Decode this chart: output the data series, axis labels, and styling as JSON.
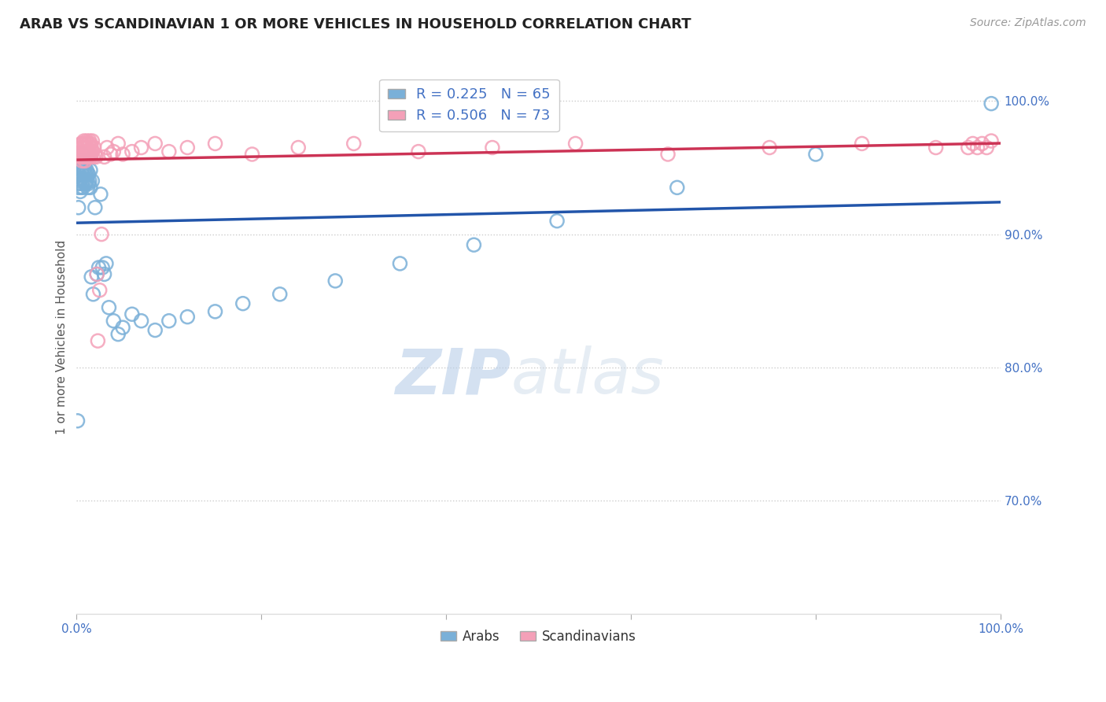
{
  "title": "ARAB VS SCANDINAVIAN 1 OR MORE VEHICLES IN HOUSEHOLD CORRELATION CHART",
  "source": "Source: ZipAtlas.com",
  "ylabel": "1 or more Vehicles in Household",
  "xlim": [
    0.0,
    1.0
  ],
  "ylim": [
    0.615,
    1.03
  ],
  "yticks": [
    0.7,
    0.8,
    0.9,
    1.0
  ],
  "ytick_labels": [
    "70.0%",
    "80.0%",
    "90.0%",
    "100.0%"
  ],
  "xticks": [
    0.0,
    0.2,
    0.4,
    0.6,
    0.8,
    1.0
  ],
  "xtick_labels": [
    "0.0%",
    "",
    "",
    "",
    "",
    "100.0%"
  ],
  "arab_color": "#7ab0d8",
  "scand_color": "#f4a0b8",
  "arab_line_color": "#2255aa",
  "scand_line_color": "#cc3355",
  "R_arab": 0.225,
  "N_arab": 65,
  "R_scand": 0.506,
  "N_scand": 73,
  "watermark_zip": "ZIP",
  "watermark_atlas": "atlas",
  "background_color": "#ffffff",
  "grid_color": "#cccccc",
  "title_color": "#222222",
  "axis_label_color": "#4472c4",
  "arab_x": [
    0.001,
    0.002,
    0.002,
    0.002,
    0.003,
    0.003,
    0.003,
    0.004,
    0.004,
    0.004,
    0.005,
    0.005,
    0.005,
    0.005,
    0.006,
    0.006,
    0.006,
    0.007,
    0.007,
    0.008,
    0.008,
    0.008,
    0.009,
    0.009,
    0.009,
    0.01,
    0.01,
    0.011,
    0.011,
    0.012,
    0.012,
    0.013,
    0.013,
    0.014,
    0.015,
    0.015,
    0.016,
    0.017,
    0.018,
    0.02,
    0.022,
    0.024,
    0.026,
    0.028,
    0.03,
    0.032,
    0.035,
    0.04,
    0.045,
    0.05,
    0.06,
    0.07,
    0.085,
    0.1,
    0.12,
    0.15,
    0.18,
    0.22,
    0.28,
    0.35,
    0.43,
    0.52,
    0.65,
    0.8,
    0.99
  ],
  "arab_y": [
    0.76,
    0.92,
    0.935,
    0.95,
    0.938,
    0.945,
    0.955,
    0.932,
    0.94,
    0.95,
    0.935,
    0.942,
    0.948,
    0.955,
    0.938,
    0.945,
    0.96,
    0.935,
    0.95,
    0.94,
    0.948,
    0.955,
    0.938,
    0.945,
    0.95,
    0.938,
    0.945,
    0.94,
    0.948,
    0.935,
    0.945,
    0.938,
    0.945,
    0.94,
    0.935,
    0.948,
    0.868,
    0.94,
    0.855,
    0.92,
    0.87,
    0.875,
    0.93,
    0.875,
    0.87,
    0.878,
    0.845,
    0.835,
    0.825,
    0.83,
    0.84,
    0.835,
    0.828,
    0.835,
    0.838,
    0.842,
    0.848,
    0.855,
    0.865,
    0.878,
    0.892,
    0.91,
    0.935,
    0.96,
    0.998
  ],
  "scand_x": [
    0.003,
    0.004,
    0.005,
    0.005,
    0.005,
    0.006,
    0.006,
    0.006,
    0.007,
    0.007,
    0.007,
    0.008,
    0.008,
    0.008,
    0.009,
    0.009,
    0.009,
    0.01,
    0.01,
    0.01,
    0.011,
    0.011,
    0.011,
    0.012,
    0.012,
    0.012,
    0.013,
    0.013,
    0.014,
    0.014,
    0.015,
    0.015,
    0.015,
    0.016,
    0.016,
    0.017,
    0.017,
    0.018,
    0.019,
    0.02,
    0.021,
    0.022,
    0.023,
    0.025,
    0.027,
    0.03,
    0.033,
    0.037,
    0.04,
    0.045,
    0.05,
    0.06,
    0.07,
    0.085,
    0.1,
    0.12,
    0.15,
    0.19,
    0.24,
    0.3,
    0.37,
    0.45,
    0.54,
    0.64,
    0.75,
    0.85,
    0.93,
    0.965,
    0.97,
    0.975,
    0.98,
    0.985,
    0.99
  ],
  "scand_y": [
    0.96,
    0.958,
    0.965,
    0.958,
    0.968,
    0.96,
    0.968,
    0.955,
    0.962,
    0.968,
    0.958,
    0.965,
    0.958,
    0.97,
    0.96,
    0.968,
    0.955,
    0.962,
    0.968,
    0.958,
    0.965,
    0.96,
    0.97,
    0.962,
    0.958,
    0.968,
    0.96,
    0.968,
    0.962,
    0.97,
    0.96,
    0.968,
    0.958,
    0.965,
    0.96,
    0.962,
    0.97,
    0.958,
    0.965,
    0.96,
    0.958,
    0.87,
    0.82,
    0.858,
    0.9,
    0.958,
    0.965,
    0.96,
    0.962,
    0.968,
    0.96,
    0.962,
    0.965,
    0.968,
    0.962,
    0.965,
    0.968,
    0.96,
    0.965,
    0.968,
    0.962,
    0.965,
    0.968,
    0.96,
    0.965,
    0.968,
    0.965,
    0.965,
    0.968,
    0.965,
    0.968,
    0.965,
    0.97
  ]
}
